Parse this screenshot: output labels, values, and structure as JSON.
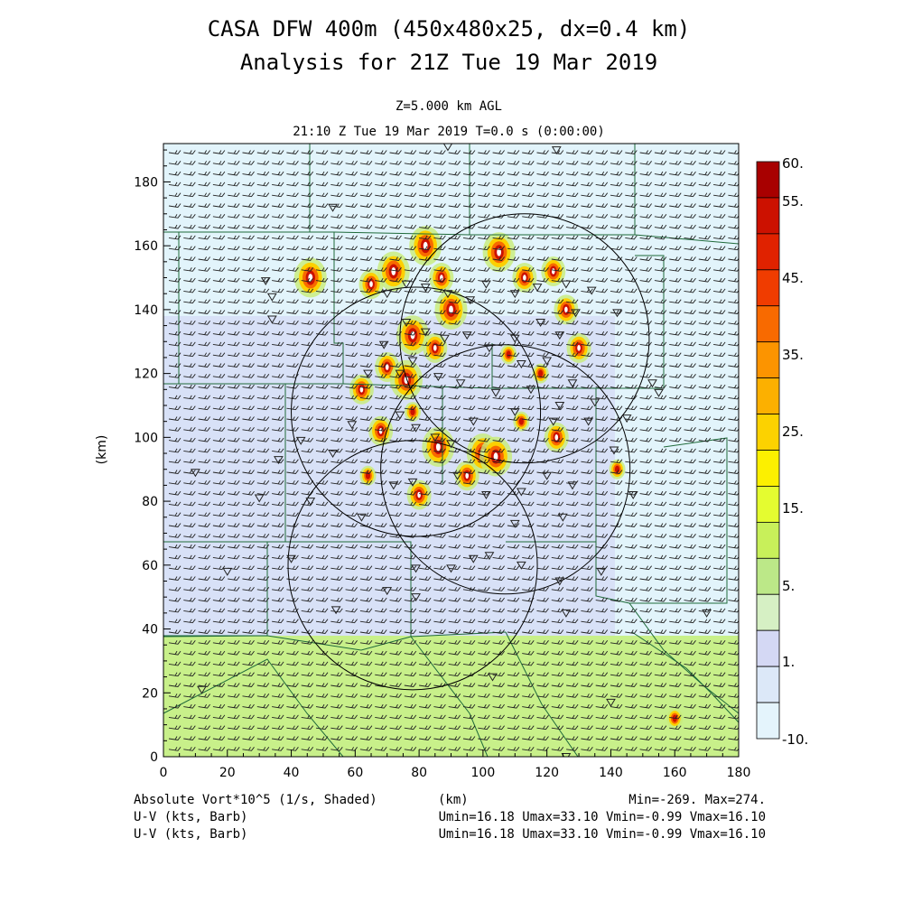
{
  "chart_data": {
    "type": "heatmap",
    "title": "CASA DFW 400m (450x480x25, dx=0.4 km)",
    "subtitle": "Analysis for 21Z Tue 19 Mar 2019",
    "level": "Z=5.000 km AGL",
    "time_line": "21:10 Z Tue 19 Mar 2019    T=0.0 s (0:00:00)",
    "xlabel": "(km)",
    "ylabel": "(km)",
    "xlim": [
      0,
      180
    ],
    "ylim": [
      0,
      192
    ],
    "x_ticks": [
      0,
      20,
      40,
      60,
      80,
      100,
      120,
      140,
      160,
      180
    ],
    "y_ticks": [
      0,
      20,
      40,
      60,
      80,
      100,
      120,
      140,
      160,
      180
    ],
    "colorbar": {
      "labels": [
        "60.",
        "55.",
        "45.",
        "35.",
        "25.",
        "15.",
        "5.",
        "1.",
        "-10."
      ],
      "colors": [
        "#a80000",
        "#cc1100",
        "#e02200",
        "#f03c00",
        "#f86a00",
        "#fc9400",
        "#fcb000",
        "#fcd200",
        "#fcf000",
        "#e4fc30",
        "#c8f05a",
        "#bce888",
        "#d6f0c4",
        "#d4d8f4",
        "#dce8f8",
        "#e4f4fc"
      ],
      "bands": [
        {
          "from": "#cfe8ff",
          "to": null
        },
        {
          "from": "#cfe8ff",
          "to": null
        }
      ]
    },
    "footer": {
      "left1": "Absolute Vort*10^5 (1/s, Shaded)",
      "center": "(km)",
      "right1": "Min=-269. Max=274.",
      "left2": "U-V (kts, Barb)",
      "right2": "Umin=16.18 Umax=33.10 Vmin=-0.99 Vmax=16.10",
      "left3": "U-V (kts, Barb)",
      "right3": "Umin=16.18 Umax=33.10 Vmin=-0.99 Vmax=16.10"
    },
    "range_rings": [
      {
        "cx": 113,
        "cy": 131,
        "r": 39
      },
      {
        "cx": 79,
        "cy": 108,
        "r": 39
      },
      {
        "cx": 107,
        "cy": 90,
        "r": 39
      },
      {
        "cx": 78,
        "cy": 60,
        "r": 39
      }
    ],
    "cells": [
      {
        "x": 46,
        "y": 150,
        "s": 4
      },
      {
        "x": 65,
        "y": 148,
        "s": 3
      },
      {
        "x": 72,
        "y": 152,
        "s": 4
      },
      {
        "x": 82,
        "y": 160,
        "s": 4
      },
      {
        "x": 87,
        "y": 150,
        "s": 3
      },
      {
        "x": 90,
        "y": 140,
        "s": 4
      },
      {
        "x": 78,
        "y": 132,
        "s": 4
      },
      {
        "x": 85,
        "y": 128,
        "s": 3
      },
      {
        "x": 105,
        "y": 158,
        "s": 4
      },
      {
        "x": 113,
        "y": 150,
        "s": 3
      },
      {
        "x": 122,
        "y": 152,
        "s": 3
      },
      {
        "x": 126,
        "y": 140,
        "s": 3
      },
      {
        "x": 130,
        "y": 128,
        "s": 3
      },
      {
        "x": 118,
        "y": 120,
        "s": 2
      },
      {
        "x": 70,
        "y": 122,
        "s": 3
      },
      {
        "x": 76,
        "y": 118,
        "s": 4
      },
      {
        "x": 62,
        "y": 115,
        "s": 3
      },
      {
        "x": 68,
        "y": 102,
        "s": 3
      },
      {
        "x": 78,
        "y": 108,
        "s": 2
      },
      {
        "x": 86,
        "y": 97,
        "s": 4
      },
      {
        "x": 100,
        "y": 95,
        "s": 4
      },
      {
        "x": 104,
        "y": 94,
        "s": 4
      },
      {
        "x": 95,
        "y": 88,
        "s": 3
      },
      {
        "x": 80,
        "y": 82,
        "s": 3
      },
      {
        "x": 64,
        "y": 88,
        "s": 2
      },
      {
        "x": 123,
        "y": 100,
        "s": 3
      },
      {
        "x": 142,
        "y": 90,
        "s": 2
      },
      {
        "x": 160,
        "y": 12,
        "s": 2
      },
      {
        "x": 108,
        "y": 126,
        "s": 2
      },
      {
        "x": 112,
        "y": 105,
        "s": 2
      }
    ],
    "stations": [
      [
        89,
        191
      ],
      [
        123,
        190
      ],
      [
        53,
        172
      ],
      [
        32,
        149
      ],
      [
        34,
        144
      ],
      [
        34,
        137
      ],
      [
        70,
        145
      ],
      [
        76,
        148
      ],
      [
        82,
        147
      ],
      [
        89,
        145
      ],
      [
        96,
        143
      ],
      [
        101,
        148
      ],
      [
        110,
        145
      ],
      [
        117,
        147
      ],
      [
        126,
        148
      ],
      [
        134,
        146
      ],
      [
        142,
        139
      ],
      [
        129,
        139
      ],
      [
        124,
        132
      ],
      [
        118,
        136
      ],
      [
        110,
        131
      ],
      [
        102,
        128
      ],
      [
        95,
        132
      ],
      [
        88,
        131
      ],
      [
        82,
        133
      ],
      [
        76,
        136
      ],
      [
        69,
        129
      ],
      [
        64,
        120
      ],
      [
        74,
        120
      ],
      [
        78,
        124
      ],
      [
        86,
        119
      ],
      [
        93,
        117
      ],
      [
        104,
        114
      ],
      [
        115,
        115
      ],
      [
        124,
        110
      ],
      [
        135,
        111
      ],
      [
        145,
        106
      ],
      [
        155,
        114
      ],
      [
        153,
        117
      ],
      [
        128,
        117
      ],
      [
        112,
        123
      ],
      [
        120,
        124
      ],
      [
        74,
        107
      ],
      [
        79,
        103
      ],
      [
        85,
        100
      ],
      [
        90,
        98
      ],
      [
        97,
        105
      ],
      [
        110,
        108
      ],
      [
        122,
        105
      ],
      [
        133,
        105
      ],
      [
        141,
        96
      ],
      [
        59,
        104
      ],
      [
        53,
        95
      ],
      [
        43,
        99
      ],
      [
        36,
        93
      ],
      [
        30,
        81
      ],
      [
        10,
        89
      ],
      [
        46,
        80
      ],
      [
        62,
        75
      ],
      [
        72,
        85
      ],
      [
        78,
        86
      ],
      [
        92,
        88
      ],
      [
        101,
        82
      ],
      [
        112,
        83
      ],
      [
        120,
        88
      ],
      [
        128,
        85
      ],
      [
        147,
        82
      ],
      [
        125,
        75
      ],
      [
        110,
        73
      ],
      [
        97,
        62
      ],
      [
        102,
        63
      ],
      [
        90,
        59
      ],
      [
        79,
        59
      ],
      [
        79,
        50
      ],
      [
        70,
        52
      ],
      [
        54,
        46
      ],
      [
        20,
        58
      ],
      [
        40,
        62
      ],
      [
        112,
        60
      ],
      [
        124,
        55
      ],
      [
        126,
        45
      ],
      [
        170,
        45
      ],
      [
        137,
        58
      ],
      [
        103,
        25
      ],
      [
        140,
        17
      ],
      [
        12,
        21
      ],
      [
        126,
        0
      ]
    ]
  }
}
